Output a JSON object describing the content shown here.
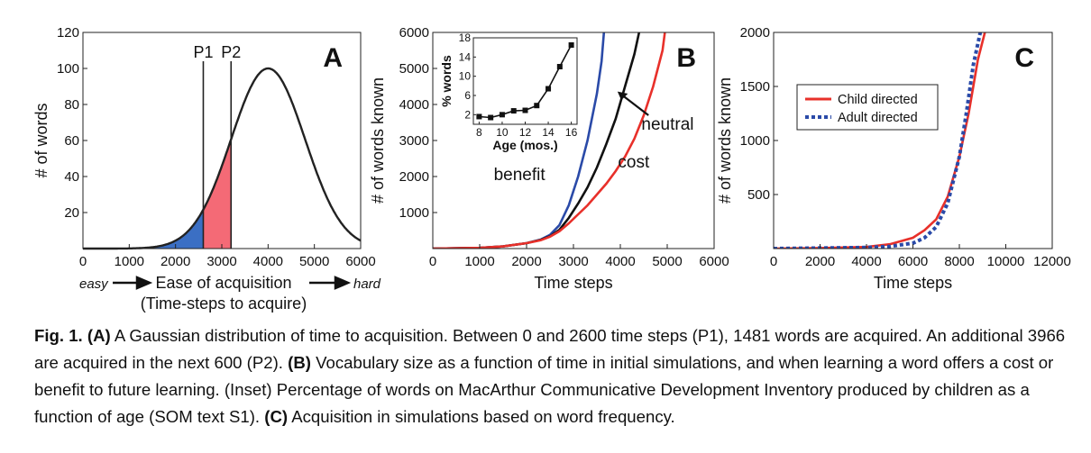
{
  "chart_data": [
    {
      "panel": "A",
      "type": "area",
      "panel_label": "A",
      "ylabel": "# of words",
      "xlabel": "Ease of acquisition",
      "xlabel2": "(Time-steps to acquire)",
      "easy_label": "easy",
      "hard_label": "hard",
      "xlim": [
        0,
        6000
      ],
      "ylim": [
        0,
        120
      ],
      "xticks": [
        0,
        1000,
        2000,
        3000,
        4000,
        5000,
        6000
      ],
      "yticks": [
        20,
        40,
        60,
        80,
        100,
        120
      ],
      "gaussian": {
        "mean": 4000,
        "sd": 800,
        "peak": 100
      },
      "markers": [
        {
          "label": "P1",
          "x": 2600
        },
        {
          "label": "P2",
          "x": 3200
        }
      ],
      "shading": [
        {
          "from": 0,
          "to": 2600,
          "color": "#3b6fc4"
        },
        {
          "from": 2600,
          "to": 3200,
          "color": "#f46a76"
        }
      ]
    },
    {
      "panel": "B",
      "type": "line",
      "panel_label": "B",
      "ylabel": "# of words known",
      "xlabel": "Time steps",
      "xlim": [
        0,
        6000
      ],
      "ylim": [
        0,
        6000
      ],
      "xticks": [
        0,
        1000,
        2000,
        3000,
        4000,
        5000,
        6000
      ],
      "yticks": [
        1000,
        2000,
        3000,
        4000,
        5000,
        6000
      ],
      "series": [
        {
          "name": "benefit",
          "color": "#2a4aa8",
          "x": [
            0,
            1000,
            1500,
            2000,
            2300,
            2500,
            2700,
            2900,
            3100,
            3300,
            3500,
            3600,
            3650
          ],
          "y": [
            0,
            20,
            60,
            150,
            250,
            380,
            650,
            1200,
            2000,
            3000,
            4300,
            5200,
            6000
          ]
        },
        {
          "name": "neutral",
          "color": "#111111",
          "x": [
            0,
            1000,
            1500,
            2000,
            2300,
            2500,
            2700,
            2900,
            3100,
            3300,
            3500,
            3700,
            3900,
            4100,
            4300,
            4400
          ],
          "y": [
            0,
            20,
            60,
            150,
            240,
            340,
            520,
            850,
            1250,
            1700,
            2250,
            2900,
            3600,
            4500,
            5400,
            6000
          ]
        },
        {
          "name": "cost",
          "color": "#e8302a",
          "x": [
            0,
            1000,
            1500,
            2000,
            2300,
            2500,
            2700,
            2900,
            3100,
            3300,
            3500,
            3700,
            3900,
            4100,
            4300,
            4500,
            4700,
            4900,
            4950
          ],
          "y": [
            0,
            20,
            60,
            150,
            230,
            330,
            480,
            700,
            950,
            1200,
            1500,
            1800,
            2150,
            2550,
            3050,
            3700,
            4500,
            5500,
            6000
          ]
        }
      ],
      "labels": [
        {
          "text": "benefit",
          "x": 1300,
          "y": 1900
        },
        {
          "text": "neutral",
          "x": 4450,
          "y": 3300
        },
        {
          "text": "cost",
          "x": 3950,
          "y": 2250
        }
      ],
      "inset": {
        "type": "line",
        "ylabel": "% words",
        "xlabel": "Age (mos.)",
        "xlim": [
          7.5,
          16.5
        ],
        "ylim": [
          0,
          18
        ],
        "xticks": [
          8,
          10,
          12,
          14,
          16
        ],
        "yticks": [
          2,
          6,
          10,
          14,
          18
        ],
        "x": [
          8,
          9,
          10,
          11,
          12,
          13,
          14,
          15,
          16
        ],
        "y": [
          1.6,
          1.4,
          2.0,
          2.8,
          2.9,
          3.9,
          7.4,
          12.0,
          16.5
        ]
      }
    },
    {
      "panel": "C",
      "type": "line",
      "panel_label": "C",
      "ylabel": "# of words known",
      "xlabel": "Time steps",
      "xlim": [
        0,
        12000
      ],
      "ylim": [
        0,
        2000
      ],
      "xticks": [
        0,
        2000,
        4000,
        6000,
        8000,
        10000,
        12000
      ],
      "yticks": [
        500,
        1000,
        1500,
        2000
      ],
      "legend_position": "top-left",
      "series": [
        {
          "name": "Child directed",
          "color": "#e8302a",
          "dashed": false,
          "x": [
            0,
            2000,
            4000,
            5000,
            6000,
            6500,
            7000,
            7500,
            8000,
            8400,
            8800,
            9100
          ],
          "y": [
            0,
            5,
            15,
            40,
            100,
            170,
            270,
            480,
            850,
            1250,
            1750,
            2000
          ]
        },
        {
          "name": "Adult directed",
          "color": "#2a4aa8",
          "dashed": true,
          "x": [
            0,
            2000,
            4000,
            5000,
            6000,
            6500,
            7000,
            7500,
            8000,
            8300,
            8600,
            8900
          ],
          "y": [
            0,
            5,
            10,
            20,
            50,
            100,
            200,
            420,
            850,
            1250,
            1700,
            2000
          ]
        }
      ]
    }
  ],
  "caption": {
    "fig_label": "Fig. 1.",
    "parts": [
      {
        "tag": "(A)",
        "text": " A Gaussian distribution of time to acquisition. Between 0 and 2600 time steps (P1), 1481 words are acquired. An additional 3966 are acquired in the next 600 (P2). "
      },
      {
        "tag": "(B)",
        "text": " Vocabulary size as a function of time in initial simulations, and when learning a word offers a cost or benefit to future learning. (Inset) Percentage of words on MacArthur Communicative Development Inventory produced by children as a function of age (SOM text S1). "
      },
      {
        "tag": "(C)",
        "text": " Acquisition in simulations based on word frequency."
      }
    ]
  }
}
